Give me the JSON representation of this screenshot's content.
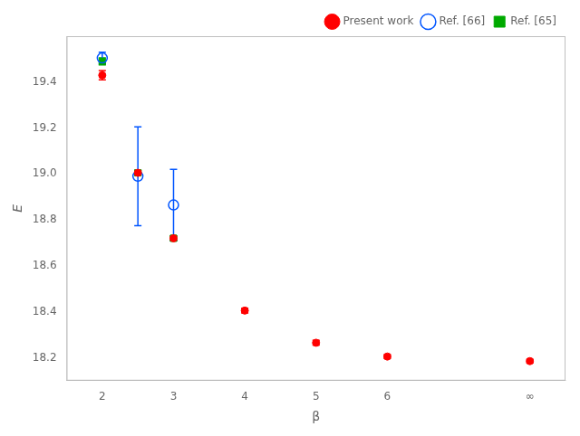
{
  "chart_data": {
    "type": "scatter",
    "xlabel": "β",
    "ylabel": "E",
    "xlim": [
      1.5,
      8.5
    ],
    "ylim": [
      18.1,
      19.6
    ],
    "xticks": [
      2,
      3,
      4,
      5,
      6,
      {
        "value": 8,
        "label": "∞"
      }
    ],
    "yticks": [
      18.2,
      18.4,
      18.6,
      18.8,
      {
        "value": 19.0,
        "label": "19.0"
      },
      19.2,
      19.4
    ],
    "grid": false,
    "legend": "upper right",
    "series": [
      {
        "name": "Ref. [65]",
        "color": "#00aa00",
        "marker": "square",
        "x": [
          2,
          2.5,
          3
        ],
        "values": [
          19.49,
          19.005,
          18.72
        ],
        "yerr": [
          0.015,
          0.01,
          0.01
        ]
      },
      {
        "name": "Ref. [66]",
        "color": "#0055ff",
        "marker": "circle-open",
        "x": [
          2,
          2.5,
          3
        ],
        "values": [
          19.505,
          18.99,
          18.865
        ],
        "yerr": [
          0.025,
          0.215,
          0.155
        ]
      },
      {
        "name": "Present work",
        "color": "#ff0000",
        "marker": "circle",
        "x": [
          2,
          2.5,
          3,
          4,
          5,
          6,
          8
        ],
        "values": [
          19.43,
          19.005,
          18.72,
          18.405,
          18.265,
          18.205,
          18.185
        ],
        "yerr": [
          0.02,
          0.008,
          0.008,
          0.01,
          0.01,
          0.008,
          0.008
        ]
      }
    ]
  }
}
